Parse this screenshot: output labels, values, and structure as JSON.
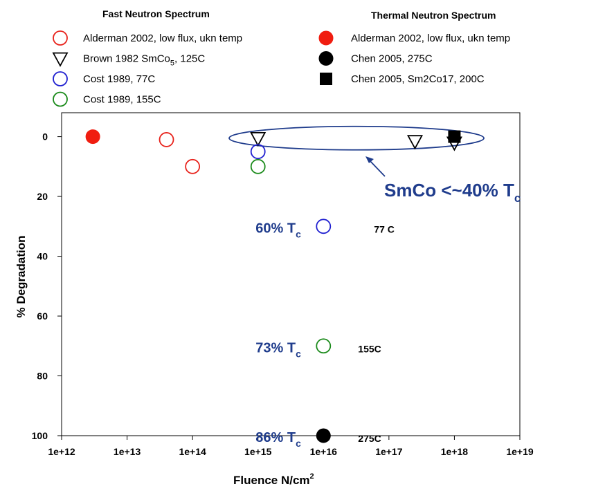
{
  "chart_data": {
    "type": "scatter",
    "xlabel": "Fluence N/cm",
    "xlabel_sup": "2",
    "ylabel": "% Degradation",
    "xscale": "log",
    "xlim": [
      1000000000000.0,
      1e+19
    ],
    "ylim": [
      100,
      -8
    ],
    "y_inverted": true,
    "x_ticks": [
      1000000000000.0,
      10000000000000.0,
      100000000000000.0,
      1000000000000000.0,
      1e+16,
      1e+17,
      1e+18,
      1e+19
    ],
    "x_tick_labels": [
      "1e+12",
      "1e+13",
      "1e+14",
      "1e+15",
      "1e+16",
      "1e+17",
      "1e+18",
      "1e+19"
    ],
    "y_ticks": [
      0,
      20,
      40,
      60,
      80,
      100
    ],
    "y_tick_labels": [
      "0",
      "20",
      "40",
      "60",
      "80",
      "100"
    ],
    "grid": false,
    "legend_groups": [
      {
        "title": "Fast Neutron Spectrum",
        "position": "top-left"
      },
      {
        "title": "Thermal Neutron Spectrum",
        "position": "top-right"
      }
    ],
    "series": [
      {
        "name": "Alderman 2002, low flux, ukn temp",
        "group": 0,
        "marker": "circle-open",
        "color": "#e8231c",
        "points": [
          {
            "x": 40000000000000.0,
            "y": 1
          },
          {
            "x": 100000000000000.0,
            "y": 10
          }
        ]
      },
      {
        "name": "Brown 1982 SmCo",
        "name_sub": "5",
        "name_suffix": ", 125C",
        "group": 0,
        "marker": "triangle-down-open",
        "color": "#000000",
        "points": [
          {
            "x": 1000000000000000.0,
            "y": 0.5
          },
          {
            "x": 2.5e+17,
            "y": 1.5
          },
          {
            "x": 1e+18,
            "y": 2
          }
        ]
      },
      {
        "name": "Cost 1989, 77C",
        "group": 0,
        "marker": "circle-open",
        "color": "#1f1fd0",
        "points": [
          {
            "x": 1000000000000000.0,
            "y": 5
          },
          {
            "x": 1e+16,
            "y": 30
          }
        ]
      },
      {
        "name": "Cost 1989, 155C",
        "group": 0,
        "marker": "circle-open",
        "color": "#1a8a1a",
        "points": [
          {
            "x": 1000000000000000.0,
            "y": 10
          },
          {
            "x": 1e+16,
            "y": 70
          }
        ]
      },
      {
        "name": "Alderman 2002, low flux, ukn temp",
        "group": 1,
        "marker": "circle-filled",
        "color": "#f01d10",
        "points": [
          {
            "x": 3000000000000.0,
            "y": 0
          }
        ]
      },
      {
        "name": "Chen 2005, 275C",
        "group": 1,
        "marker": "circle-filled",
        "color": "#000000",
        "points": [
          {
            "x": 1e+16,
            "y": 100
          }
        ]
      },
      {
        "name": "Chen 2005, Sm2Co17, 200C",
        "group": 1,
        "marker": "square-filled",
        "color": "#000000",
        "points": [
          {
            "x": 1e+18,
            "y": 0
          }
        ]
      }
    ],
    "annotations": [
      {
        "text": "SmCo <~40% T",
        "sub": "c",
        "style": "big",
        "anchor_x": 4e+16,
        "anchor_y": 4
      },
      {
        "text": "60% T",
        "sub": "c",
        "style": "blue",
        "anchor_x": 1e+16,
        "anchor_y": 30
      },
      {
        "text": "77 C",
        "style": "black",
        "anchor_x": 1e+16,
        "anchor_y": 30
      },
      {
        "text": "73% T",
        "sub": "c",
        "style": "blue",
        "anchor_x": 1e+16,
        "anchor_y": 70
      },
      {
        "text": "155C",
        "style": "black",
        "anchor_x": 1e+16,
        "anchor_y": 70
      },
      {
        "text": "86% T",
        "sub": "c",
        "style": "blue",
        "anchor_x": 1e+16,
        "anchor_y": 100
      },
      {
        "text": "275C",
        "style": "black",
        "anchor_x": 1e+16,
        "anchor_y": 100
      }
    ],
    "ellipse": {
      "x_center": 3.2e+16,
      "y_center": 0.5,
      "color": "#1f3c8c"
    }
  }
}
